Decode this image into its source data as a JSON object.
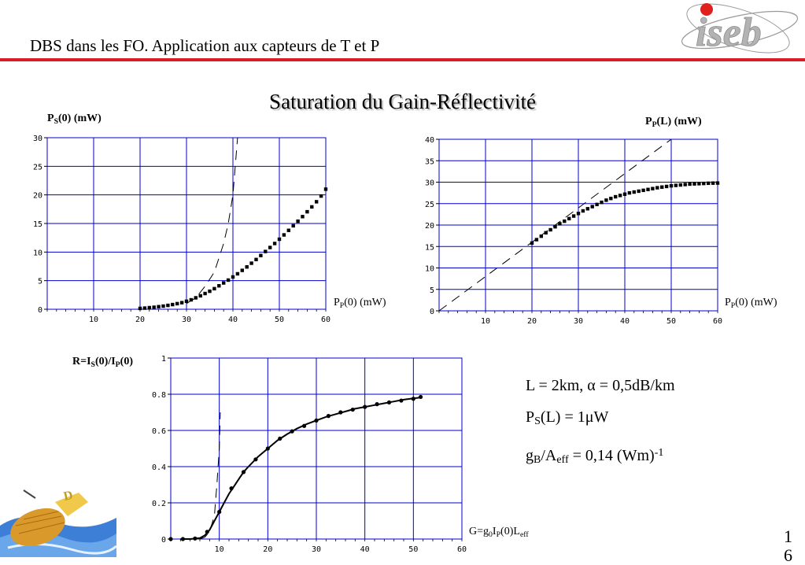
{
  "header": {
    "title": "DBS dans les FO. Application aux capteurs de T et P"
  },
  "logo": {
    "text": "iseb"
  },
  "slide_title": "Saturation du Gain-Réflectivité",
  "params": {
    "line1": "L = 2km, α = 0,5dB/km",
    "line2_main": "P",
    "line2_sub": "S",
    "line2_rest": "(L) = 1μW",
    "line3_main": "g",
    "line3_sub": "B",
    "line3_mid": "/A",
    "line3_sub2": "eff",
    "line3_rest": " = 0,14 (Wm)",
    "line3_sup": "-1"
  },
  "page_number": "1\n6",
  "chart_data": [
    {
      "type": "line",
      "ylabel_main": "P",
      "ylabel_sub": "S",
      "ylabel_rest": "(0) (mW)",
      "xlabel_main": "P",
      "xlabel_sub": "P",
      "xlabel_rest": "(0) (mW)",
      "xlim": [
        0,
        60
      ],
      "ylim": [
        0,
        30
      ],
      "xticks": [
        10,
        20,
        30,
        40,
        50,
        60
      ],
      "yticks": [
        0,
        5,
        10,
        15,
        20,
        25,
        30
      ],
      "grid": true,
      "series": [
        {
          "style": "dotted-points",
          "x": [
            20,
            21,
            22,
            23,
            24,
            25,
            26,
            27,
            28,
            29,
            30,
            31,
            32,
            33,
            34,
            35,
            36,
            37,
            38,
            39,
            40,
            41,
            42,
            43,
            44,
            45,
            46,
            47,
            48,
            49,
            50,
            51,
            52,
            53,
            54,
            55,
            56,
            57,
            58,
            59,
            60
          ],
          "y": [
            0.15,
            0.2,
            0.28,
            0.35,
            0.45,
            0.55,
            0.68,
            0.82,
            0.98,
            1.15,
            1.4,
            1.65,
            2.0,
            2.35,
            2.75,
            3.15,
            3.6,
            4.1,
            4.6,
            5.1,
            5.65,
            6.2,
            6.8,
            7.4,
            8.05,
            8.7,
            9.4,
            10.1,
            10.8,
            11.5,
            12.25,
            13.0,
            13.8,
            14.6,
            15.4,
            16.2,
            17.05,
            17.9,
            18.8,
            19.8,
            21.0
          ]
        },
        {
          "style": "dashed",
          "x": [
            30,
            32,
            34,
            36,
            37,
            38,
            39,
            40,
            41
          ],
          "y": [
            1.0,
            2.0,
            4.0,
            6.5,
            9.0,
            11.5,
            15.0,
            20.0,
            30.0
          ]
        }
      ]
    },
    {
      "type": "line",
      "ylabel_main": "P",
      "ylabel_sub": "P",
      "ylabel_rest": "(L) (mW)",
      "xlabel_main": "P",
      "xlabel_sub": "P",
      "xlabel_rest": "(0) (mW)",
      "xlim": [
        0,
        60
      ],
      "ylim": [
        0,
        40
      ],
      "xticks": [
        10,
        20,
        30,
        40,
        50,
        60
      ],
      "yticks": [
        0,
        5,
        10,
        15,
        20,
        25,
        30,
        35,
        40
      ],
      "grid": true,
      "series": [
        {
          "style": "dotted-points",
          "x": [
            20,
            21,
            22,
            23,
            24,
            25,
            26,
            27,
            28,
            29,
            30,
            31,
            32,
            33,
            34,
            35,
            36,
            37,
            38,
            39,
            40,
            41,
            42,
            43,
            44,
            45,
            46,
            47,
            48,
            49,
            50,
            51,
            52,
            53,
            54,
            55,
            56,
            57,
            58,
            59,
            60
          ],
          "y": [
            15.8,
            16.6,
            17.4,
            18.2,
            18.9,
            19.6,
            20.3,
            20.9,
            21.5,
            22.1,
            22.7,
            23.3,
            23.8,
            24.3,
            24.8,
            25.3,
            25.8,
            26.2,
            26.6,
            26.9,
            27.2,
            27.5,
            27.7,
            27.9,
            28.1,
            28.3,
            28.5,
            28.7,
            28.85,
            29.0,
            29.15,
            29.25,
            29.35,
            29.45,
            29.55,
            29.6,
            29.65,
            29.7,
            29.75,
            29.78,
            29.8
          ]
        },
        {
          "style": "dashed",
          "x": [
            0,
            50
          ],
          "y": [
            0,
            40
          ]
        }
      ]
    },
    {
      "type": "line",
      "ylabel_main": "R=I",
      "ylabel_sub": "S",
      "ylabel_mid": "(0)/I",
      "ylabel_sub2": "P",
      "ylabel_rest": "(0)",
      "xlabel_main": "G=g",
      "xlabel_sub": "0",
      "xlabel_mid": "I",
      "xlabel_sub2": "P",
      "xlabel_rest": "(0)L",
      "xlabel_sub3": "eff",
      "xlim": [
        0,
        60
      ],
      "ylim": [
        0,
        1
      ],
      "xticks": [
        10,
        20,
        30,
        40,
        50,
        60
      ],
      "yticks": [
        0,
        0.2,
        0.4,
        0.6,
        0.8,
        1
      ],
      "grid": true,
      "series": [
        {
          "style": "points",
          "x": [
            0,
            2.5,
            5,
            7.5,
            10,
            12.5,
            15,
            17.5,
            20,
            22.5,
            25,
            27.5,
            30,
            32.5,
            35,
            37.5,
            40,
            42.5,
            45,
            47.5,
            50,
            51.5
          ],
          "y": [
            0.0,
            0.0,
            0.003,
            0.04,
            0.15,
            0.28,
            0.37,
            0.44,
            0.5,
            0.555,
            0.595,
            0.625,
            0.655,
            0.68,
            0.7,
            0.715,
            0.73,
            0.745,
            0.755,
            0.765,
            0.775,
            0.785
          ]
        },
        {
          "style": "solid",
          "x": [
            2,
            4,
            6,
            7,
            8,
            9,
            10,
            11,
            12,
            13,
            14,
            15,
            16,
            18,
            20,
            22,
            24,
            26,
            28,
            30,
            32,
            34,
            36,
            38,
            40,
            42,
            44,
            46,
            48,
            50,
            51.5
          ],
          "y": [
            0.0,
            0.0,
            0.005,
            0.02,
            0.05,
            0.1,
            0.15,
            0.2,
            0.25,
            0.29,
            0.33,
            0.37,
            0.4,
            0.455,
            0.5,
            0.545,
            0.58,
            0.61,
            0.635,
            0.655,
            0.675,
            0.69,
            0.705,
            0.72,
            0.73,
            0.74,
            0.75,
            0.76,
            0.77,
            0.777,
            0.782
          ]
        },
        {
          "style": "dashed",
          "x": [
            6,
            7,
            8,
            9,
            9.5,
            10,
            10.2
          ],
          "y": [
            0.0,
            0.01,
            0.04,
            0.13,
            0.3,
            0.5,
            0.7
          ]
        }
      ]
    }
  ]
}
